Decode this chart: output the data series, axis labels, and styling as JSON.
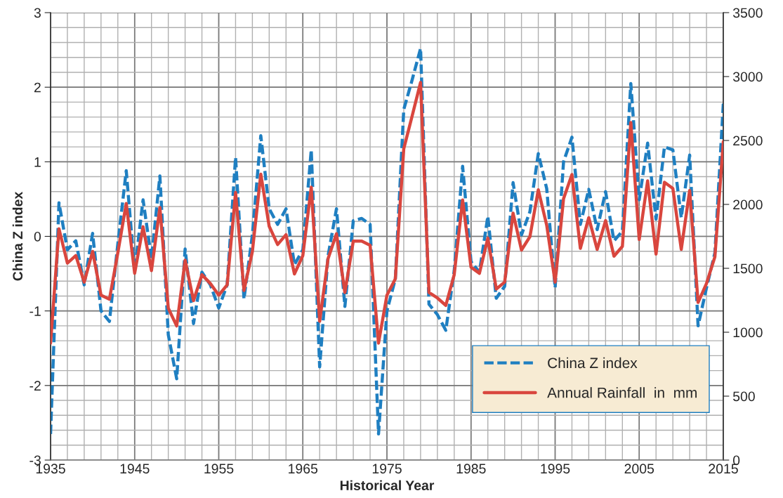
{
  "chart_data": {
    "type": "line",
    "xlabel": "Historical Year",
    "ylabel": "China Z index",
    "x": [
      1935,
      1936,
      1937,
      1938,
      1939,
      1940,
      1941,
      1942,
      1943,
      1944,
      1945,
      1946,
      1947,
      1948,
      1949,
      1950,
      1951,
      1952,
      1953,
      1954,
      1955,
      1956,
      1957,
      1958,
      1959,
      1960,
      1961,
      1962,
      1963,
      1964,
      1965,
      1966,
      1967,
      1968,
      1969,
      1970,
      1971,
      1972,
      1973,
      1974,
      1975,
      1976,
      1977,
      1978,
      1979,
      1980,
      1981,
      1982,
      1983,
      1984,
      1985,
      1986,
      1987,
      1988,
      1989,
      1990,
      1991,
      1992,
      1993,
      1994,
      1995,
      1996,
      1997,
      1998,
      1999,
      2000,
      2001,
      2002,
      2003,
      2004,
      2005,
      2006,
      2007,
      2008,
      2009,
      2010,
      2011,
      2012,
      2013,
      2014,
      2015
    ],
    "series": [
      {
        "name": "China Z index",
        "color": "#1f7fc1",
        "line_style": "dashed",
        "values": [
          -2.65,
          0.45,
          -0.18,
          -0.06,
          -0.65,
          0.04,
          -1.0,
          -1.14,
          -0.1,
          0.88,
          -0.46,
          0.49,
          -0.3,
          0.81,
          -1.32,
          -1.91,
          -0.17,
          -1.17,
          -0.48,
          -0.65,
          -0.96,
          -0.65,
          1.06,
          -0.84,
          0.02,
          1.35,
          0.37,
          0.16,
          0.37,
          -0.38,
          -0.18,
          1.16,
          -1.75,
          -0.26,
          0.37,
          -0.94,
          0.21,
          0.24,
          0.16,
          -2.65,
          -1.0,
          -0.57,
          1.7,
          2.1,
          2.52,
          -0.91,
          -1.05,
          -1.26,
          -0.46,
          0.94,
          -0.34,
          -0.48,
          0.27,
          -0.83,
          -0.67,
          0.72,
          0.02,
          0.33,
          1.11,
          0.64,
          -0.69,
          1.0,
          1.33,
          0.16,
          0.63,
          0.09,
          0.6,
          -0.06,
          0.07,
          2.05,
          0.49,
          1.25,
          0.23,
          1.2,
          1.16,
          0.25,
          1.09,
          -1.2,
          -0.69,
          -0.22,
          1.78
        ]
      },
      {
        "name": "Annual Rainfall  in  mm",
        "color": "#d9463e",
        "line_style": "solid",
        "axis": "y2",
        "values": [
          915,
          1809,
          1541,
          1600,
          1392,
          1632,
          1290,
          1258,
          1621,
          2007,
          1461,
          1825,
          1482,
          1975,
          1188,
          1049,
          1563,
          1247,
          1450,
          1381,
          1290,
          1370,
          2093,
          1327,
          1632,
          2237,
          1828,
          1686,
          1763,
          1456,
          1600,
          2135,
          1086,
          1576,
          1771,
          1311,
          1713,
          1713,
          1680,
          915,
          1290,
          1418,
          2435,
          2692,
          2954,
          1311,
          1268,
          1210,
          1450,
          2034,
          1509,
          1461,
          1736,
          1338,
          1392,
          1932,
          1643,
          1747,
          2114,
          1837,
          1392,
          2044,
          2234,
          1656,
          1896,
          1648,
          1873,
          1595,
          1672,
          2640,
          1725,
          2184,
          1611,
          2173,
          2125,
          1648,
          2109,
          1233,
          1381,
          1590,
          2491
        ]
      }
    ],
    "xlim": [
      1935,
      2015
    ],
    "xticks": [
      1935,
      1945,
      1955,
      1965,
      1975,
      1985,
      1995,
      2005,
      2015
    ],
    "ylim": [
      -3,
      3
    ],
    "yticks": [
      -3,
      -2,
      -1,
      0,
      1,
      2,
      3
    ],
    "y2lim": [
      0,
      3500
    ],
    "y2ticks": [
      0,
      500,
      1000,
      1500,
      2000,
      2500,
      3000,
      3500
    ],
    "grid": true,
    "legend": "lower right"
  }
}
